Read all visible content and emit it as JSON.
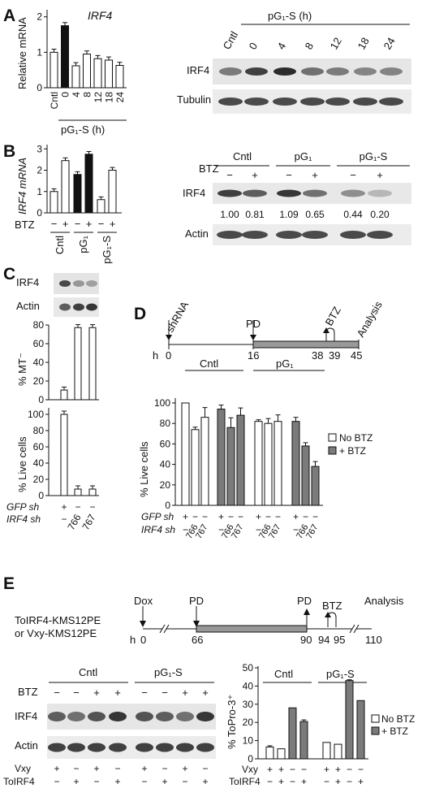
{
  "panels": [
    "A",
    "B",
    "C",
    "D",
    "E"
  ],
  "A": {
    "gene": "IRF4",
    "ylabel": "Relative mRNA",
    "yticks": [
      "0",
      "1",
      "2"
    ],
    "categories": [
      "Cntl",
      "0",
      "4",
      "8",
      "12",
      "18",
      "24"
    ],
    "xgroup": "pG₁-S (h)",
    "blot_header": "pG₁-S (h)",
    "blot_lanes": [
      "Cntl",
      "0",
      "4",
      "8",
      "12",
      "18",
      "24"
    ],
    "blot_rows": [
      "IRF4",
      "Tubulin"
    ]
  },
  "B": {
    "ylabel": "IRF4 mRNA",
    "yticks": [
      "0",
      "1",
      "2",
      "3"
    ],
    "btz_label": "BTZ",
    "btz_signs": [
      "−",
      "+",
      "−",
      "+",
      "−",
      "+"
    ],
    "groups": [
      "Cntl",
      "pG₁",
      "pG₁-S"
    ],
    "blot_groups": [
      "Cntl",
      "pG₁",
      "pG₁-S"
    ],
    "blot_btz_label": "BTZ",
    "blot_btz_signs": [
      "−",
      "+",
      "−",
      "+",
      "−",
      "+"
    ],
    "blot_rows": [
      "IRF4",
      "Actin"
    ],
    "quant": [
      "1.00",
      "0.81",
      "1.09",
      "0.65",
      "0.44",
      "0.20"
    ]
  },
  "C": {
    "blot_rows": [
      "IRF4",
      "Actin"
    ],
    "ylabel_top": "% MT⁻",
    "yticks_top": [
      "0",
      "20",
      "40",
      "60",
      "80"
    ],
    "ylabel_bottom": "% Live cells",
    "yticks_bottom": [
      "0",
      "20",
      "40",
      "60",
      "80",
      "100"
    ],
    "gfp_label": "GFP sh",
    "gfp_signs": [
      "+",
      "−",
      "−"
    ],
    "irf4_label": "IRF4 sh",
    "irf4_vals": [
      "−",
      "766",
      "767"
    ]
  },
  "D": {
    "timeline_labels": [
      "shRNA",
      "PD",
      "BTZ",
      "Analysis"
    ],
    "h_label": "h",
    "times": [
      "0",
      "16",
      "38",
      "39",
      "45"
    ],
    "groups": [
      "Cntl",
      "pG₁"
    ],
    "ylabel": "% Live cells",
    "yticks": [
      "0",
      "20",
      "40",
      "60",
      "80",
      "100"
    ],
    "legend": [
      "No BTZ",
      "+ BTZ"
    ],
    "gfp_label": "GFP sh",
    "gfp_signs": [
      "+",
      "−",
      "−",
      "+",
      "−",
      "−",
      "+",
      "−",
      "−",
      "+",
      "−",
      "−"
    ],
    "irf4_label": "IRF4 sh",
    "irf4_vals": [
      "−",
      "766",
      "767",
      "−",
      "766",
      "767",
      "−",
      "766",
      "767",
      "−",
      "766",
      "767"
    ]
  },
  "E": {
    "cell_lines": [
      "ToIRF4-KMS12PE",
      "or Vxy-KMS12PE"
    ],
    "timeline_labels": [
      "Dox",
      "PD",
      "PD",
      "BTZ",
      "Analysis"
    ],
    "h_label": "h",
    "times": [
      "0",
      "66",
      "90",
      "94",
      "95",
      "110"
    ],
    "blot_groups": [
      "Cntl",
      "pG₁-S"
    ],
    "btz_label": "BTZ",
    "btz_signs": [
      "−",
      "−",
      "+",
      "+",
      "−",
      "−",
      "+",
      "+"
    ],
    "blot_rows": [
      "IRF4",
      "Actin"
    ],
    "vxy_label": "Vxy",
    "vxy_signs": [
      "+",
      "−",
      "+",
      "−",
      "+",
      "−",
      "+",
      "−"
    ],
    "toirf4_label": "ToIRF4",
    "toirf4_signs": [
      "−",
      "+",
      "−",
      "+",
      "−",
      "+",
      "−",
      "+"
    ],
    "groups": [
      "Cntl",
      "pG₁-S"
    ],
    "ylabel": "% ToPro-3⁺",
    "yticks": [
      "0",
      "10",
      "20",
      "30",
      "40",
      "50"
    ],
    "legend": [
      "No BTZ",
      "+ BTZ"
    ],
    "vxy_bar_signs": [
      "+",
      "+",
      "−",
      "−",
      "+",
      "+",
      "−",
      "−"
    ],
    "toirf4_bar_signs": [
      "−",
      "+",
      "−",
      "+",
      "−",
      "+",
      "−",
      "+"
    ]
  },
  "chart_data": [
    {
      "type": "bar",
      "panel": "A",
      "ylabel": "Relative mRNA",
      "categories": [
        "Cntl",
        "0",
        "4",
        "8",
        "12",
        "18",
        "24"
      ],
      "values": [
        1.0,
        1.75,
        0.62,
        0.95,
        0.82,
        0.78,
        0.63
      ],
      "ylim": [
        0,
        2.2
      ]
    },
    {
      "type": "bar",
      "panel": "B",
      "ylabel": "IRF4 mRNA",
      "categories": [
        "Cntl −",
        "Cntl +",
        "pG₁ −",
        "pG₁ +",
        "pG₁-S −",
        "pG₁-S +"
      ],
      "values": [
        1.0,
        2.45,
        1.8,
        2.75,
        0.62,
        2.0
      ],
      "ylim": [
        0,
        3.2
      ]
    },
    {
      "type": "bar",
      "panel": "C-top",
      "ylabel": "% MT⁻",
      "categories": [
        "GFP",
        "766",
        "767"
      ],
      "values": [
        11,
        82,
        82
      ],
      "ylim": [
        0,
        80
      ]
    },
    {
      "type": "bar",
      "panel": "C-bottom",
      "ylabel": "% Live cells",
      "categories": [
        "GFP",
        "766",
        "767"
      ],
      "values": [
        100,
        8,
        8
      ],
      "ylim": [
        0,
        100
      ]
    },
    {
      "type": "bar",
      "panel": "D",
      "ylabel": "% Live cells",
      "legend": [
        "No BTZ",
        "+ BTZ"
      ],
      "values": [
        100,
        74,
        86,
        94,
        76,
        88,
        82,
        80,
        82,
        82,
        58,
        38
      ],
      "series_index": [
        0,
        0,
        0,
        1,
        1,
        1,
        0,
        0,
        0,
        1,
        1,
        1
      ],
      "ylim": [
        0,
        100
      ]
    },
    {
      "type": "bar",
      "panel": "E",
      "ylabel": "% ToPro-3⁺",
      "legend": [
        "No BTZ",
        "+ BTZ"
      ],
      "values": [
        6.5,
        5.5,
        28,
        20.5,
        9,
        8,
        43,
        32
      ],
      "series_index": [
        0,
        0,
        1,
        1,
        0,
        0,
        1,
        1
      ],
      "ylim": [
        0,
        50
      ]
    }
  ]
}
